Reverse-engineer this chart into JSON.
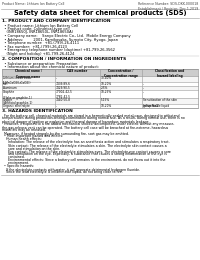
{
  "header_left": "Product Name: Lithium Ion Battery Cell",
  "header_right": "Reference Number: SDS-DKK-000018\nEstablishment / Revision: Dec.1,2019",
  "title": "Safety data sheet for chemical products (SDS)",
  "section1_header": "1. PRODUCT AND COMPANY IDENTIFICATION",
  "section1_lines": [
    "  • Product name: Lithium Ion Battery Cell",
    "  • Product code: Cylindrical-type cell",
    "    (INR18650J, INR18650L, INR18650A)",
    "  • Company name:    Sanyo Electric Co., Ltd.  Mobile Energy Company",
    "  • Address:         2001, Kamikosaka, Sumoto City, Hyogo, Japan",
    "  • Telephone number:  +81-(799)-26-4111",
    "  • Fax number:  +81-(799)-26-4123",
    "  • Emergency telephone number (daytime) +81-799-26-3562",
    "    (Night and holiday) +81-799-26-4124"
  ],
  "section2_header": "2. COMPOSITION / INFORMATION ON INGREDIENTS",
  "section2_intro": "  • Substance or preparation: Preparation",
  "section2_sub": "  • Information about the chemical nature of product:",
  "table_col_headers": [
    "Chemical name /\nCommon name",
    "CAS number",
    "Concentration /\nConcentration range",
    "Classification and\nhazard labeling"
  ],
  "table_rows": [
    [
      "Lithium cobalt oxide\n(LiMnCoO2(LiCoO2))",
      "-",
      "30-40%",
      ""
    ],
    [
      "Iron",
      "7439-89-6",
      "10-20%",
      "-"
    ],
    [
      "Aluminum",
      "7429-90-5",
      "2-5%",
      "-"
    ],
    [
      "Graphite\n(Flake or graphite-1)\n(Artificial graphite-1)",
      "77002-42-5\n7782-42-5",
      "10-25%",
      "-"
    ],
    [
      "Copper",
      "7440-50-8",
      "5-15%",
      "Sensitization of the skin\ngroup No.2"
    ],
    [
      "Organic electrolyte",
      "-",
      "10-20%",
      "Inflammable liquid"
    ]
  ],
  "section3_header": "3. HAZARDS IDENTIFICATION",
  "section3_text": [
    "  For the battery cell, chemical materials are stored in a hermetically sealed metal case, designed to withstand",
    "temperatures during production-testing-examination during normal use. As a result, during normal use, there is no",
    "physical danger of ignition or explosion and thermal danger of hazardous materials leakage.",
    "  However, if exposed to a fire added mechanical shocks, decomposed, under electric without any measure,",
    "the gas release vent can be operated. The battery cell case will be breached at fire-extreme, hazardous",
    "materials may be released.",
    "  Moreover, if heated strongly by the surrounding fire, soot gas may be emitted.",
    "  • Most important hazard and effects:",
    "    Human health effects:",
    "      Inhalation: The release of the electrolyte has an anesthesia action and stimulates a respiratory tract.",
    "      Skin contact: The release of the electrolyte stimulates a skin. The electrolyte skin contact causes a",
    "      sore and stimulation on the skin.",
    "      Eye contact: The release of the electrolyte stimulates eyes. The electrolyte eye contact causes a sore",
    "      and stimulation on the eye. Especially, a substance that causes a strong inflammation of the eye is",
    "      contained.",
    "      Environmental effects: Since a battery cell remains in the environment, do not throw out it into the",
    "      environment.",
    "  • Specific hazards:",
    "    If the electrolyte contacts with water, it will generate detrimental hydrogen fluoride.",
    "    Since the lead electrolyte is inflammable liquid, do not bring close to fire."
  ],
  "bg_color": "#ffffff",
  "text_color": "#000000",
  "table_header_bg": "#cccccc",
  "line_color": "#888888"
}
